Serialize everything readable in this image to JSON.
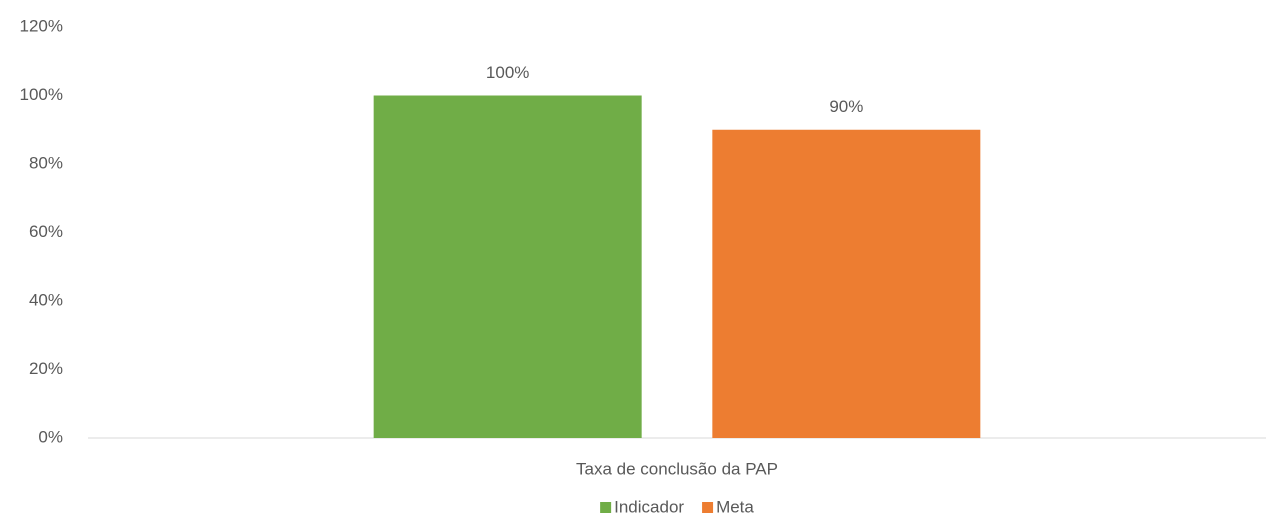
{
  "chart_data": {
    "type": "bar",
    "categories": [
      "Taxa de conclusão da PAP"
    ],
    "series": [
      {
        "name": "Indicador",
        "color": "#70ad47",
        "values": [
          100
        ],
        "value_labels": [
          "100%"
        ]
      },
      {
        "name": "Meta",
        "color": "#ed7d31",
        "values": [
          90
        ],
        "value_labels": [
          "90%"
        ]
      }
    ],
    "ylim": [
      0,
      120
    ],
    "yticks": [
      {
        "value": 0,
        "label": "0%"
      },
      {
        "value": 20,
        "label": "20%"
      },
      {
        "value": 40,
        "label": "40%"
      },
      {
        "value": 60,
        "label": "60%"
      },
      {
        "value": 80,
        "label": "80%"
      },
      {
        "value": 100,
        "label": "100%"
      },
      {
        "value": 120,
        "label": "120%"
      }
    ],
    "grid": false,
    "legend": "bottom"
  }
}
